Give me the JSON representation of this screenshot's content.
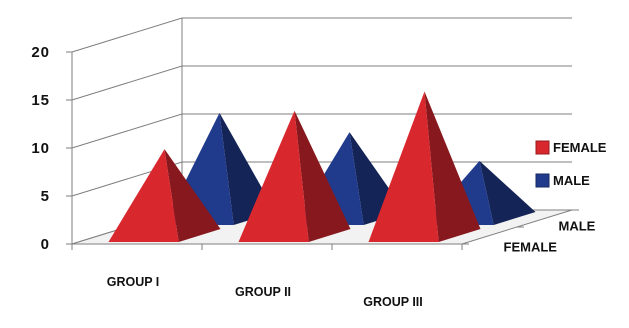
{
  "chart_data": {
    "type": "bar",
    "subtype": "3d-pyramid",
    "title": "",
    "xlabel": "",
    "ylabel": "",
    "ylim": [
      0,
      20
    ],
    "y_ticks": [
      "0",
      "5",
      "10",
      "15",
      "20"
    ],
    "categories": [
      "GROUP I",
      "GROUP II",
      "GROUP III"
    ],
    "series": [
      {
        "name": "FEMALE",
        "color": "#d9272e",
        "values": [
          9,
          13,
          15
        ]
      },
      {
        "name": "MALE",
        "color": "#203a8c",
        "values": [
          11,
          9,
          6
        ]
      }
    ],
    "depth_labels": [
      "MALE",
      "FEMALE"
    ],
    "legend": {
      "position": "right",
      "entries": [
        "FEMALE",
        "MALE"
      ]
    },
    "grid": true
  }
}
